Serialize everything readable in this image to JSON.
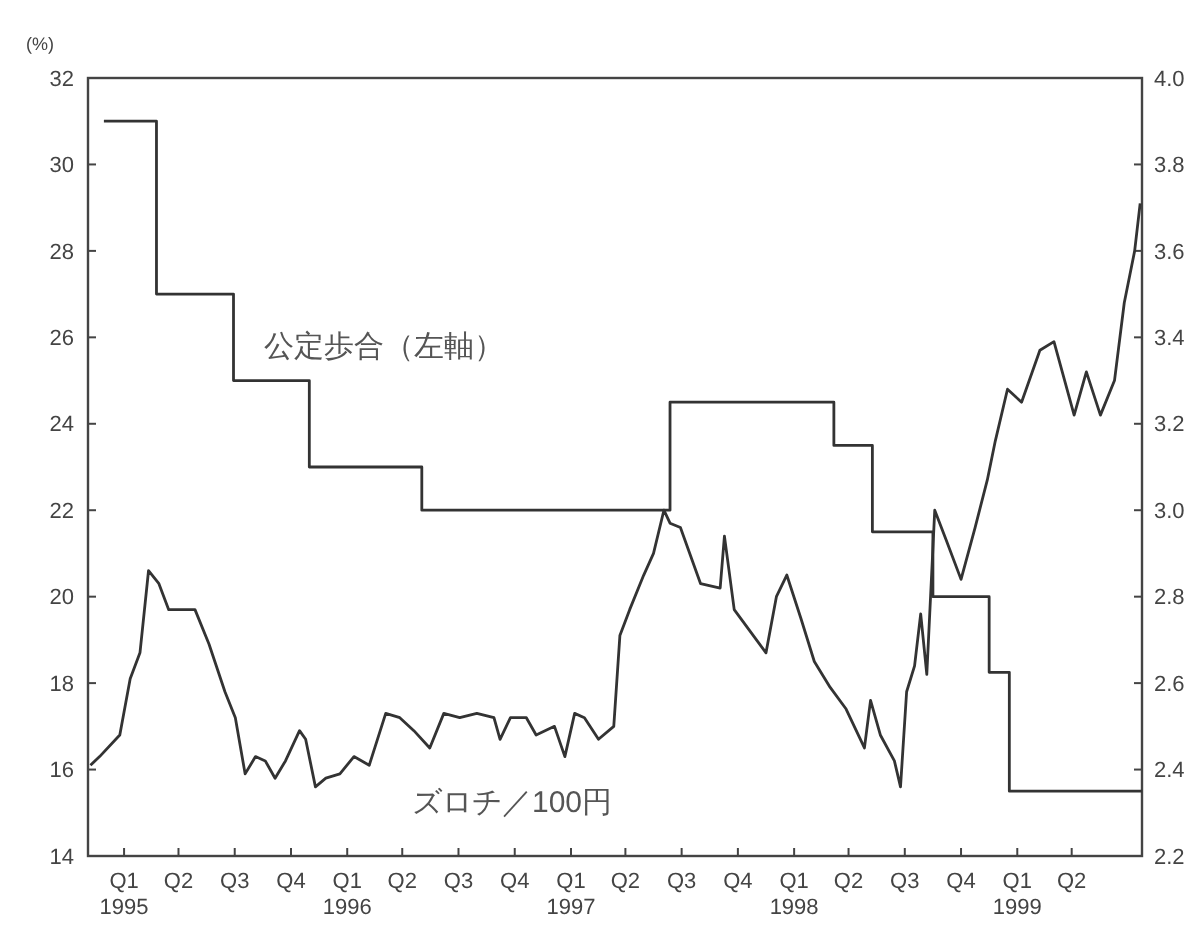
{
  "chart_data": {
    "type": "line",
    "ylabel": "(%)",
    "legend": false,
    "grid": false,
    "marker": "none",
    "line_style": "solid",
    "xlim": [
      "1994-12-18",
      "1999-09-07"
    ],
    "xticks": [
      {
        "value": "1995-02-15",
        "label": "Q1 1995"
      },
      {
        "value": "1995-05-15",
        "label": "Q2"
      },
      {
        "value": "1995-08-15",
        "label": "Q3"
      },
      {
        "value": "1995-11-15",
        "label": "Q4"
      },
      {
        "value": "1996-02-15",
        "label": "Q1 1996"
      },
      {
        "value": "1996-05-15",
        "label": "Q2"
      },
      {
        "value": "1996-08-15",
        "label": "Q3"
      },
      {
        "value": "1996-11-15",
        "label": "Q4"
      },
      {
        "value": "1997-02-15",
        "label": "Q1 1997"
      },
      {
        "value": "1997-05-15",
        "label": "Q2"
      },
      {
        "value": "1997-08-15",
        "label": "Q3"
      },
      {
        "value": "1997-11-15",
        "label": "Q4"
      },
      {
        "value": "1998-02-15",
        "label": "Q1 1998"
      },
      {
        "value": "1998-05-15",
        "label": "Q2"
      },
      {
        "value": "1998-08-15",
        "label": "Q3"
      },
      {
        "value": "1998-11-15",
        "label": "Q4"
      },
      {
        "value": "1999-02-15",
        "label": "Q1 1999"
      },
      {
        "value": "1999-05-15",
        "label": "Q2"
      }
    ],
    "ylim": [
      14,
      32
    ],
    "yticks": [
      14,
      16,
      18,
      20,
      22,
      24,
      26,
      28,
      30,
      32
    ],
    "y2lim": [
      2.2,
      4.0
    ],
    "y2ticks": [
      2.2,
      2.4,
      2.6,
      2.8,
      {
        "value": 3,
        "label": "3.0"
      },
      3.2,
      3.4,
      3.6,
      3.8,
      {
        "value": 4,
        "label": "4.0"
      }
    ],
    "series": [
      {
        "name": "公定歩合（左軸）",
        "type": "step",
        "color": "#333333",
        "x": [
          "1995-01-13",
          "1995-04-09",
          "1995-08-13",
          "1995-12-15",
          "1996-06-16",
          "1997-07-27",
          "1998-04-21",
          "1998-06-23",
          "1998-09-30",
          "1998-12-31",
          "1999-02-02",
          "1999-09-07"
        ],
        "values": [
          31,
          27,
          25,
          23,
          22,
          24.5,
          23.5,
          21.5,
          20,
          18.25,
          15.5,
          15.5
        ]
      },
      {
        "name": "ズロチ／100円",
        "axis": "y2",
        "color": "#333333",
        "x": [
          "1994-12-22",
          "1995-01-06",
          "1995-02-08",
          "1995-02-25",
          "1995-03-13",
          "1995-03-27",
          "1995-04-13",
          "1995-04-29",
          "1995-05-15",
          "1995-06-11",
          "1995-07-04",
          "1995-07-30",
          "1995-08-16",
          "1995-09-01",
          "1995-09-18",
          "1995-10-04",
          "1995-10-20",
          "1995-11-06",
          "1995-11-29",
          "1995-12-09",
          "1995-12-25",
          "1996-01-11",
          "1996-02-03",
          "1996-02-26",
          "1996-03-22",
          "1996-04-18",
          "1996-05-11",
          "1996-06-03",
          "1996-06-29",
          "1996-07-22",
          "1996-08-17",
          "1996-09-14",
          "1996-10-12",
          "1996-10-22",
          "1996-11-08",
          "1996-12-04",
          "1996-12-20",
          "1997-01-19",
          "1997-02-05",
          "1997-02-21",
          "1997-03-09",
          "1997-04-01",
          "1997-04-26",
          "1997-05-06",
          "1997-05-22",
          "1997-06-14",
          "1997-06-30",
          "1997-07-17",
          "1997-07-27",
          "1997-08-13",
          "1997-09-15",
          "1997-10-17",
          "1997-10-24",
          "1997-11-09",
          "1997-12-31",
          "1998-01-17",
          "1998-02-03",
          "1998-02-26",
          "1998-03-20",
          "1998-04-15",
          "1998-05-11",
          "1998-06-10",
          "1998-06-20",
          "1998-07-06",
          "1998-07-29",
          "1998-08-08",
          "1998-08-18",
          "1998-08-31",
          "1998-09-10",
          "1998-09-20",
          "1998-10-03",
          "1998-10-22",
          "1998-11-15",
          "1998-12-08",
          "1998-12-28",
          "1999-01-10",
          "1999-01-30",
          "1999-02-22",
          "1999-03-24",
          "1999-04-16",
          "1999-05-19",
          "1999-06-08",
          "1999-07-01",
          "1999-07-24",
          "1999-08-09",
          "1999-08-26",
          "1999-09-04"
        ],
        "values": [
          2.41,
          2.43,
          2.48,
          2.61,
          2.67,
          2.86,
          2.83,
          2.77,
          2.77,
          2.77,
          2.69,
          2.58,
          2.52,
          2.39,
          2.43,
          2.42,
          2.38,
          2.42,
          2.49,
          2.47,
          2.36,
          2.38,
          2.39,
          2.43,
          2.41,
          2.53,
          2.52,
          2.49,
          2.45,
          2.53,
          2.52,
          2.53,
          2.52,
          2.47,
          2.52,
          2.52,
          2.48,
          2.5,
          2.43,
          2.53,
          2.52,
          2.47,
          2.5,
          2.71,
          2.77,
          2.85,
          2.9,
          3.0,
          2.97,
          2.96,
          2.83,
          2.82,
          2.94,
          2.77,
          2.67,
          2.8,
          2.85,
          2.75,
          2.65,
          2.59,
          2.54,
          2.45,
          2.56,
          2.48,
          2.42,
          2.36,
          2.58,
          2.64,
          2.76,
          2.62,
          3.0,
          2.93,
          2.84,
          2.96,
          3.07,
          3.16,
          3.28,
          3.25,
          3.37,
          3.39,
          3.22,
          3.32,
          3.22,
          3.3,
          3.48,
          3.6,
          3.71
        ]
      }
    ]
  }
}
